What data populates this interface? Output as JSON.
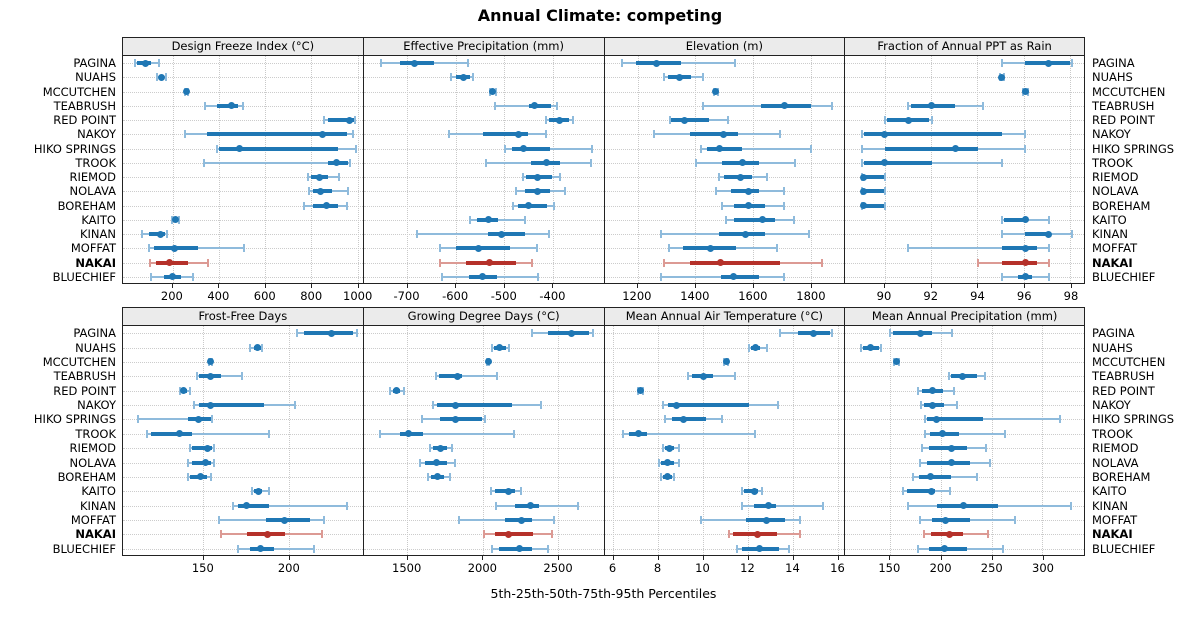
{
  "title": "Annual Climate: competing",
  "caption": "5th-25th-50th-75th-95th Percentiles",
  "colors": {
    "series": "#1f77b4",
    "series_light": "#8fbbdc",
    "highlight": "#b5312a",
    "highlight_light": "#dc9a94",
    "strip_bg": "#ebebeb",
    "grid": "#cccccc"
  },
  "highlight_site": "NAKAI",
  "chart_data": {
    "type": "dot-whisker",
    "percentiles": [
      5,
      25,
      50,
      75,
      95
    ],
    "legend_note": "values per site are [5th, 25th, 50th, 75th, 95th] percentiles",
    "sites": [
      "PAGINA",
      "NUAHS",
      "MCCUTCHEN",
      "TEABRUSH",
      "RED POINT",
      "NAKOY",
      "HIKO SPRINGS",
      "TROOK",
      "RIEMOD",
      "NOLAVA",
      "BOREHAM",
      "KAITO",
      "KINAN",
      "MOFFAT",
      "NAKAI",
      "BLUECHIEF"
    ],
    "panels": [
      {
        "title": "Design Freeze Index (°C)",
        "row": 0,
        "col": 0,
        "xlim": [
          -15,
          1022
        ],
        "ticks": [
          200,
          400,
          600,
          800,
          1000
        ],
        "values": [
          [
            35,
            45,
            80,
            105,
            140
          ],
          [
            133,
            145,
            152,
            160,
            172
          ],
          [
            250,
            254,
            257,
            260,
            264
          ],
          [
            340,
            392,
            453,
            480,
            500
          ],
          [
            852,
            870,
            962,
            978,
            986
          ],
          [
            250,
            348,
            845,
            948,
            975
          ],
          [
            390,
            400,
            486,
            911,
            990
          ],
          [
            333,
            867,
            903,
            956,
            963
          ],
          [
            780,
            795,
            830,
            870,
            915
          ],
          [
            785,
            805,
            835,
            885,
            955
          ],
          [
            765,
            805,
            860,
            910,
            950
          ],
          [
            195,
            202,
            212,
            220,
            226
          ],
          [
            65,
            95,
            148,
            165,
            175
          ],
          [
            95,
            120,
            205,
            310,
            505
          ],
          [
            100,
            125,
            185,
            265,
            350
          ],
          [
            105,
            163,
            200,
            237,
            285
          ]
        ]
      },
      {
        "title": "Effective Precipitation (mm)",
        "row": 0,
        "col": 1,
        "xlim": [
          -790,
          -295
        ],
        "ticks": [
          -700,
          -600,
          -500,
          -400
        ],
        "values": [
          [
            -755,
            -715,
            -685,
            -645,
            -575
          ],
          [
            -610,
            -600,
            -585,
            -572,
            -565
          ],
          [
            -530,
            -528,
            -525,
            -522,
            -519
          ],
          [
            -520,
            -450,
            -438,
            -405,
            -393
          ],
          [
            -415,
            -410,
            -388,
            -368,
            -360
          ],
          [
            -615,
            -545,
            -472,
            -452,
            -415
          ],
          [
            -500,
            -486,
            -462,
            -407,
            -320
          ],
          [
            -538,
            -447,
            -415,
            -387,
            -323
          ],
          [
            -463,
            -456,
            -432,
            -403,
            -387
          ],
          [
            -476,
            -459,
            -432,
            -407,
            -376
          ],
          [
            -483,
            -473,
            -452,
            -414,
            -399
          ],
          [
            -572,
            -558,
            -534,
            -514,
            -459
          ],
          [
            -680,
            -534,
            -507,
            -459,
            -410
          ],
          [
            -634,
            -600,
            -555,
            -490,
            -434
          ],
          [
            -634,
            -580,
            -531,
            -476,
            -445
          ],
          [
            -630,
            -574,
            -545,
            -517,
            -431
          ]
        ]
      },
      {
        "title": "Elevation (m)",
        "row": 0,
        "col": 2,
        "xlim": [
          1085,
          1915
        ],
        "ticks": [
          1200,
          1400,
          1600,
          1800
        ],
        "values": [
          [
            1145,
            1195,
            1265,
            1350,
            1535
          ],
          [
            1290,
            1305,
            1343,
            1383,
            1423
          ],
          [
            1463,
            1466,
            1469,
            1472,
            1475
          ],
          [
            1425,
            1623,
            1705,
            1798,
            1868
          ],
          [
            1310,
            1315,
            1360,
            1445,
            1510
          ],
          [
            1255,
            1380,
            1495,
            1546,
            1690
          ],
          [
            1417,
            1440,
            1480,
            1560,
            1798
          ],
          [
            1400,
            1489,
            1560,
            1617,
            1743
          ],
          [
            1480,
            1497,
            1554,
            1594,
            1646
          ],
          [
            1469,
            1520,
            1583,
            1617,
            1703
          ],
          [
            1491,
            1531,
            1583,
            1640,
            1703
          ],
          [
            1503,
            1531,
            1629,
            1674,
            1737
          ],
          [
            1280,
            1480,
            1571,
            1640,
            1789
          ],
          [
            1309,
            1354,
            1451,
            1537,
            1680
          ],
          [
            1290,
            1380,
            1486,
            1690,
            1834
          ],
          [
            1280,
            1486,
            1531,
            1617,
            1703
          ]
        ]
      },
      {
        "title": "Fraction of Annual PPT as Rain",
        "row": 0,
        "col": 3,
        "xlim": [
          88.3,
          98.6
        ],
        "ticks": [
          90,
          92,
          94,
          96,
          98
        ],
        "values": [
          [
            95,
            96,
            97,
            97.9,
            98
          ],
          [
            94.9,
            94.95,
            95,
            95.05,
            95.1
          ],
          [
            95.9,
            95.95,
            96,
            96.05,
            96.1
          ],
          [
            91,
            91.1,
            92,
            93,
            94.2
          ],
          [
            90,
            90.1,
            91,
            91.9,
            92
          ],
          [
            89,
            89.1,
            90,
            95,
            96
          ],
          [
            89,
            90,
            93,
            94,
            96
          ],
          [
            89,
            89.1,
            90,
            92,
            95
          ],
          [
            89,
            89.05,
            89.1,
            89.95,
            90
          ],
          [
            89,
            89.05,
            89.1,
            89.95,
            90
          ],
          [
            89,
            89.05,
            89.1,
            89.95,
            90
          ],
          [
            95,
            95.1,
            96,
            96.1,
            97
          ],
          [
            95,
            96,
            97,
            97.1,
            98
          ],
          [
            91,
            95,
            96,
            96.5,
            97
          ],
          [
            94,
            95,
            96,
            96.5,
            97
          ],
          [
            95,
            95.7,
            96,
            96.3,
            97
          ]
        ]
      },
      {
        "title": "Frost-Free Days",
        "row": 1,
        "col": 0,
        "xlim": [
          103,
          243
        ],
        "ticks": [
          150,
          200
        ],
        "values": [
          [
            204,
            208,
            224,
            237,
            239
          ],
          [
            177,
            179,
            181,
            183,
            184
          ],
          [
            153,
            153.5,
            154,
            154.5,
            155
          ],
          [
            146,
            147,
            154,
            160,
            172
          ],
          [
            136,
            137,
            138,
            140,
            142
          ],
          [
            144,
            147,
            154,
            185,
            203
          ],
          [
            112,
            141,
            147,
            154,
            155
          ],
          [
            117,
            119,
            136,
            143,
            188
          ],
          [
            142,
            143,
            152,
            155,
            156
          ],
          [
            141,
            143,
            151,
            154,
            156
          ],
          [
            141,
            142,
            148,
            152,
            154
          ],
          [
            178,
            179,
            182,
            184,
            188
          ],
          [
            167,
            170,
            175,
            188,
            233
          ],
          [
            159,
            186,
            197,
            212,
            220
          ],
          [
            160,
            175,
            187,
            197,
            219
          ],
          [
            170,
            177,
            183,
            191,
            214
          ]
        ]
      },
      {
        "title": "Growing Degree Days (°C)",
        "row": 1,
        "col": 1,
        "xlim": [
          1210,
          2800
        ],
        "ticks": [
          1500,
          2000,
          2500
        ],
        "values": [
          [
            2320,
            2430,
            2580,
            2700,
            2725
          ],
          [
            2055,
            2072,
            2106,
            2148,
            2172
          ],
          [
            2025,
            2028,
            2031,
            2034,
            2037
          ],
          [
            1686,
            1704,
            1830,
            1858,
            2090
          ],
          [
            1383,
            1400,
            1423,
            1450,
            1478
          ],
          [
            1670,
            1692,
            1814,
            2190,
            2378
          ],
          [
            1597,
            1715,
            1814,
            1990,
            2010
          ],
          [
            1316,
            1449,
            1504,
            1604,
            2201
          ],
          [
            1648,
            1670,
            1715,
            1760,
            1792
          ],
          [
            1582,
            1615,
            1692,
            1759,
            1814
          ],
          [
            1637,
            1655,
            1697,
            1740,
            1781
          ],
          [
            2053,
            2080,
            2164,
            2212,
            2250
          ],
          [
            2084,
            2212,
            2312,
            2367,
            2626
          ],
          [
            1836,
            2146,
            2250,
            2323,
            2467
          ],
          [
            2007,
            2075,
            2168,
            2327,
            2456
          ],
          [
            2058,
            2102,
            2241,
            2323,
            2427
          ]
        ]
      },
      {
        "title": "Mean Annual Air Temperature (°C)",
        "row": 1,
        "col": 2,
        "xlim": [
          5.6,
          16.3
        ],
        "ticks": [
          6,
          8,
          10,
          12,
          14,
          16
        ],
        "values": [
          [
            13.4,
            14.2,
            14.9,
            15.6,
            15.7
          ],
          [
            12.0,
            12.1,
            12.3,
            12.5,
            12.8
          ],
          [
            10.9,
            10.95,
            11.0,
            11.05,
            11.1
          ],
          [
            9.3,
            9.5,
            10.0,
            10.4,
            11.4
          ],
          [
            7.1,
            7.15,
            7.2,
            7.25,
            7.3
          ],
          [
            8.2,
            8.4,
            8.8,
            12.0,
            13.3
          ],
          [
            8.3,
            8.6,
            9.1,
            10.1,
            10.8
          ],
          [
            6.4,
            6.7,
            7.1,
            7.5,
            12.3
          ],
          [
            8.2,
            8.3,
            8.5,
            8.7,
            8.9
          ],
          [
            8.0,
            8.1,
            8.4,
            8.7,
            8.9
          ],
          [
            8.1,
            8.2,
            8.4,
            8.6,
            8.7
          ],
          [
            11.7,
            11.8,
            12.25,
            12.4,
            12.6
          ],
          [
            11.7,
            12.25,
            12.9,
            13.2,
            15.3
          ],
          [
            9.9,
            11.9,
            12.8,
            13.6,
            14.3
          ],
          [
            11.15,
            11.3,
            12.4,
            13.25,
            14.3
          ],
          [
            11.5,
            11.7,
            12.5,
            13.35,
            13.8
          ]
        ]
      },
      {
        "title": "Mean Annual Precipitation (mm)",
        "row": 1,
        "col": 3,
        "xlim": [
          106,
          341
        ],
        "ticks": [
          150,
          200,
          250,
          300
        ],
        "values": [
          [
            150,
            153,
            179,
            191,
            210
          ],
          [
            121,
            123,
            131,
            139,
            141
          ],
          [
            154,
            155,
            156,
            157,
            158
          ],
          [
            207,
            209,
            220,
            235,
            242
          ],
          [
            177,
            181,
            191,
            201,
            212
          ],
          [
            180,
            183,
            191,
            202,
            215
          ],
          [
            184,
            186,
            195,
            240,
            316
          ],
          [
            184,
            189,
            201,
            217,
            262
          ],
          [
            181,
            188,
            210,
            225,
            243
          ],
          [
            179,
            186,
            210,
            228,
            247
          ],
          [
            172,
            178,
            189,
            209,
            235
          ],
          [
            162,
            166,
            190,
            194,
            208
          ],
          [
            167,
            196,
            221,
            255,
            326
          ],
          [
            179,
            191,
            204,
            228,
            272
          ],
          [
            183,
            190,
            208,
            221,
            245
          ],
          [
            177,
            188,
            203,
            225,
            260
          ]
        ]
      }
    ]
  }
}
